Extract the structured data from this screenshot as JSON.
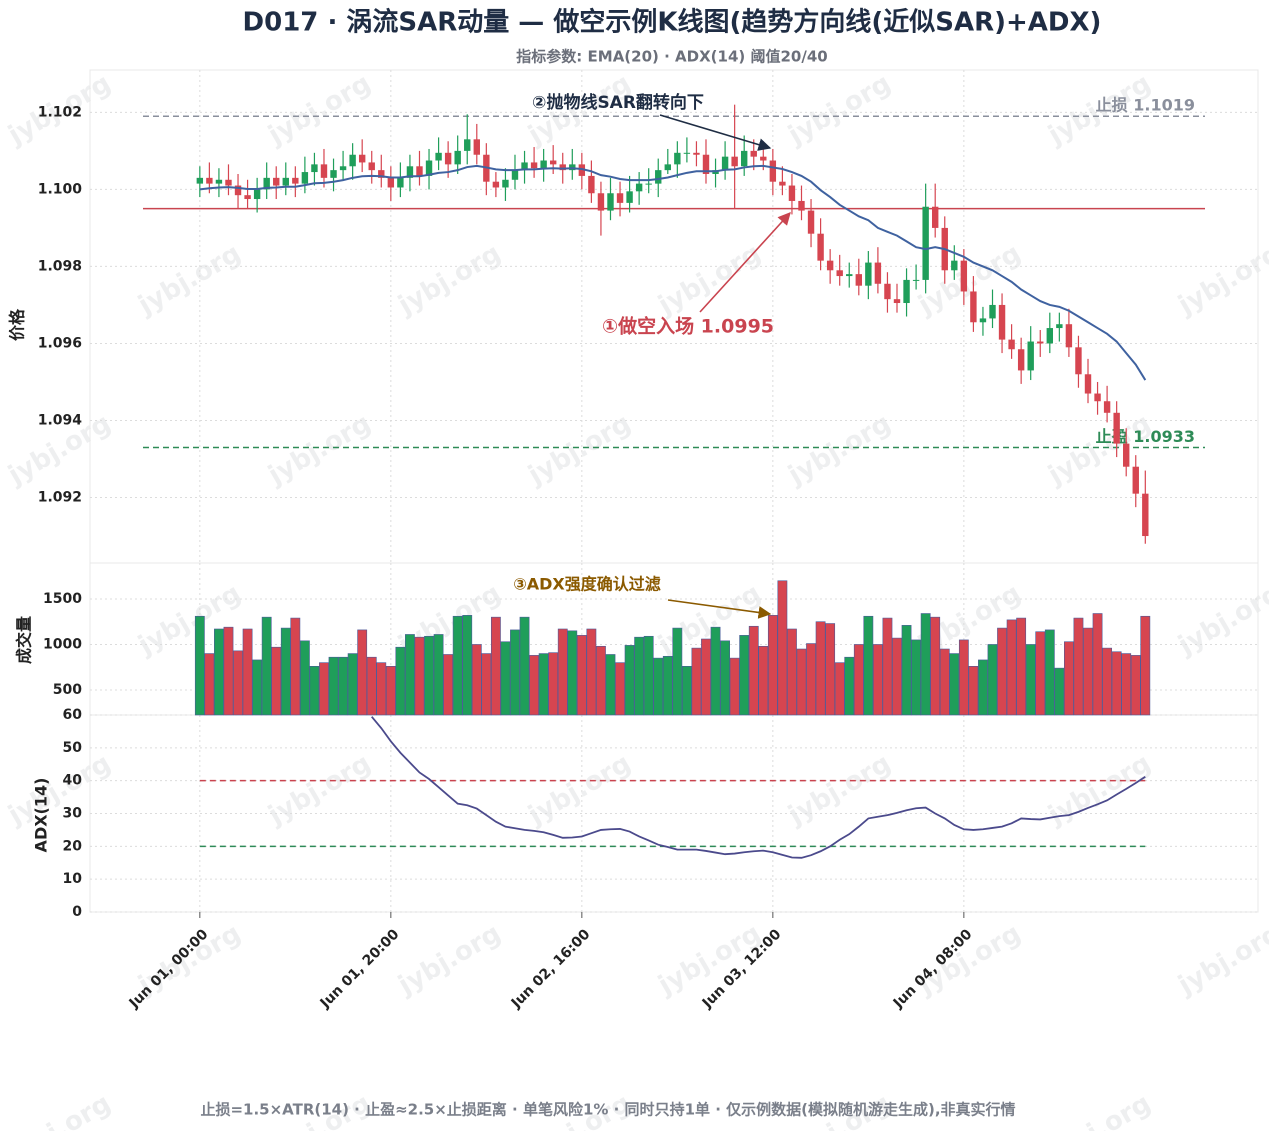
{
  "title": "D017 · 涡流SAR动量 — 做空示例K线图(趋势方向线(近似SAR)+ADX)",
  "subtitle": "指标参数: EMA(20) · ADX(14) 阈值20/40",
  "footer": "止损=1.5×ATR(14) · 止盈≈2.5×止损距离 · 单笔风险1% · 同时只持1单 · 仅示例数据(模拟随机游走生成),非真实行情",
  "watermark": "jybj.org",
  "chart_data": [
    {
      "type": "candlestick",
      "ylabel": "价格",
      "grid": true,
      "up_color": "#1f9e5a",
      "down_color": "#d64550",
      "ylim": [
        1.0903,
        1.1031
      ],
      "yticks": [
        1.092,
        1.094,
        1.096,
        1.098,
        {
          "value": 1.1,
          "label": "1.100"
        },
        1.102
      ],
      "x": [
        0,
        1,
        2,
        3,
        4,
        5,
        6,
        7,
        8,
        9,
        10,
        11,
        12,
        13,
        14,
        15,
        16,
        17,
        18,
        19,
        20,
        21,
        22,
        23,
        24,
        25,
        26,
        27,
        28,
        29,
        30,
        31,
        32,
        33,
        34,
        35,
        36,
        37,
        38,
        39,
        40,
        41,
        42,
        43,
        44,
        45,
        46,
        47,
        48,
        49,
        50,
        51,
        52,
        53,
        54,
        55,
        56,
        57,
        58,
        59,
        60,
        61,
        62,
        63,
        64,
        65,
        66,
        67,
        68,
        69,
        70,
        71,
        72,
        73,
        74,
        75,
        76,
        77,
        78,
        79,
        80,
        81,
        82,
        83,
        84,
        85,
        86,
        87,
        88,
        89,
        90,
        91,
        92,
        93,
        94,
        95,
        96,
        97,
        98,
        99
      ],
      "open": [
        1.10015,
        1.1003,
        1.10015,
        1.10025,
        1.1001,
        1.09985,
        1.09975,
        1.1,
        1.1003,
        1.1001,
        1.1003,
        1.10015,
        1.10045,
        1.10065,
        1.1003,
        1.1005,
        1.1006,
        1.1009,
        1.1007,
        1.1005,
        1.1003,
        1.10005,
        1.1003,
        1.1006,
        1.10035,
        1.10075,
        1.10095,
        1.10065,
        1.101,
        1.1013,
        1.1009,
        1.1002,
        1.10005,
        1.10025,
        1.1005,
        1.1007,
        1.10055,
        1.10075,
        1.10065,
        1.1005,
        1.10065,
        1.10035,
        1.0999,
        1.09945,
        1.0999,
        1.09965,
        1.09995,
        1.10015,
        1.10015,
        1.1005,
        1.10065,
        1.10095,
        1.10095,
        1.1009,
        1.1004,
        1.1005,
        1.10085,
        1.1006,
        1.101,
        1.10085,
        1.10075,
        1.1002,
        1.1001,
        1.0997,
        1.09945,
        1.09885,
        1.09815,
        1.0979,
        1.09775,
        1.0978,
        1.0975,
        1.0981,
        1.09755,
        1.09715,
        1.09705,
        1.09765,
        1.09765,
        1.09955,
        1.099,
        1.0979,
        1.09815,
        1.09735,
        1.09655,
        1.09665,
        1.097,
        1.0961,
        1.09585,
        1.0953,
        1.09605,
        1.096,
        1.0964,
        1.0965,
        1.0959,
        1.0952,
        1.0947,
        1.0945,
        1.0942,
        1.0934,
        1.0928,
        1.0921
      ],
      "high": [
        1.1006,
        1.1007,
        1.10055,
        1.10065,
        1.1004,
        1.10025,
        1.1003,
        1.1007,
        1.1006,
        1.1007,
        1.1006,
        1.10085,
        1.10095,
        1.10105,
        1.1008,
        1.101,
        1.1012,
        1.1013,
        1.101,
        1.1009,
        1.1006,
        1.1007,
        1.1009,
        1.101,
        1.10105,
        1.10135,
        1.10125,
        1.1014,
        1.10195,
        1.1017,
        1.1012,
        1.10045,
        1.10055,
        1.1009,
        1.101,
        1.1011,
        1.10105,
        1.10115,
        1.10095,
        1.10105,
        1.10095,
        1.10075,
        1.1002,
        1.1003,
        1.1002,
        1.10035,
        1.10045,
        1.10055,
        1.1008,
        1.10105,
        1.10125,
        1.10135,
        1.10125,
        1.1013,
        1.1008,
        1.10125,
        1.1022,
        1.1014,
        1.1013,
        1.10125,
        1.10105,
        1.1006,
        1.1004,
        1.1001,
        1.09975,
        1.09925,
        1.09845,
        1.0983,
        1.0981,
        1.0982,
        1.0984,
        1.0985,
        1.09785,
        1.09755,
        1.09795,
        1.09805,
        1.10015,
        1.10015,
        1.0993,
        1.09855,
        1.09845,
        1.09775,
        1.09695,
        1.0974,
        1.0973,
        1.0965,
        1.09615,
        1.09645,
        1.09635,
        1.0968,
        1.0968,
        1.0969,
        1.0962,
        1.0956,
        1.095,
        1.0949,
        1.0945,
        1.0938,
        1.0931,
        1.0927
      ],
      "low": [
        1.0998,
        1.0999,
        1.0998,
        1.09985,
        1.0995,
        1.0995,
        1.0994,
        1.09975,
        1.09975,
        1.09985,
        1.0998,
        1.0999,
        1.1001,
        1.10005,
        1.09995,
        1.10025,
        1.10025,
        1.10045,
        1.10015,
        1.10005,
        1.0997,
        1.0998,
        1.09995,
        1.1001,
        1.1,
        1.1005,
        1.1003,
        1.1004,
        1.10065,
        1.10065,
        1.09985,
        1.0998,
        1.0997,
        1.1,
        1.10015,
        1.1003,
        1.1002,
        1.1004,
        1.10015,
        1.10025,
        1.1,
        1.09965,
        1.0988,
        1.0992,
        1.0993,
        1.0994,
        1.0996,
        1.0999,
        1.0998,
        1.1004,
        1.1003,
        1.1007,
        1.1006,
        1.10015,
        1.10005,
        1.10025,
        1.0995,
        1.10035,
        1.1005,
        1.1005,
        1.09985,
        1.09985,
        1.09935,
        1.0992,
        1.0985,
        1.0979,
        1.09755,
        1.0975,
        1.09745,
        1.09725,
        1.09715,
        1.0973,
        1.0968,
        1.0968,
        1.0967,
        1.0974,
        1.0973,
        1.09875,
        1.09755,
        1.09765,
        1.097,
        1.0963,
        1.0962,
        1.0964,
        1.09575,
        1.0956,
        1.09495,
        1.09505,
        1.09565,
        1.09575,
        1.09605,
        1.09565,
        1.09485,
        1.09445,
        1.09415,
        1.09395,
        1.09305,
        1.09255,
        1.09175,
        1.0908
      ],
      "close": [
        1.1003,
        1.10015,
        1.10025,
        1.1001,
        1.09985,
        1.09975,
        1.1,
        1.1003,
        1.1001,
        1.1003,
        1.10015,
        1.10045,
        1.10065,
        1.1003,
        1.1005,
        1.1006,
        1.1009,
        1.1007,
        1.1005,
        1.1003,
        1.10005,
        1.1003,
        1.1006,
        1.10035,
        1.10075,
        1.10095,
        1.10065,
        1.101,
        1.1013,
        1.1009,
        1.1002,
        1.10005,
        1.10025,
        1.1005,
        1.1007,
        1.10055,
        1.10075,
        1.10065,
        1.1005,
        1.10065,
        1.10035,
        1.0999,
        1.09945,
        1.0999,
        1.09965,
        1.09995,
        1.10015,
        1.10015,
        1.1005,
        1.10065,
        1.10095,
        1.10095,
        1.1009,
        1.1004,
        1.1005,
        1.10085,
        1.1006,
        1.101,
        1.10085,
        1.10075,
        1.1002,
        1.1001,
        1.0997,
        1.09945,
        1.09885,
        1.09815,
        1.0979,
        1.09775,
        1.0978,
        1.0975,
        1.0981,
        1.09755,
        1.09715,
        1.09705,
        1.09765,
        1.09765,
        1.09955,
        1.099,
        1.0979,
        1.09815,
        1.09735,
        1.09655,
        1.09665,
        1.097,
        1.0961,
        1.09585,
        1.0953,
        1.09605,
        1.096,
        1.0964,
        1.0965,
        1.0959,
        1.0952,
        1.0947,
        1.0945,
        1.0942,
        1.0934,
        1.0928,
        1.0921,
        1.091
      ],
      "ema_color": "#3f62a0",
      "ema_values": [
        1.1,
        1.10003,
        1.10005,
        1.10006,
        1.10004,
        1.10001,
        1.10001,
        1.10004,
        1.10005,
        1.10007,
        1.10007,
        1.10011,
        1.10016,
        1.10017,
        1.1002,
        1.10024,
        1.1003,
        1.10034,
        1.10035,
        1.10034,
        1.10031,
        1.10031,
        1.10034,
        1.10034,
        1.10038,
        1.10043,
        1.10045,
        1.1005,
        1.10058,
        1.10061,
        1.10057,
        1.10052,
        1.1005,
        1.1005,
        1.10052,
        1.10052,
        1.10054,
        1.10055,
        1.10054,
        1.10055,
        1.10053,
        1.10047,
        1.10037,
        1.10033,
        1.10027,
        1.10024,
        1.10024,
        1.10024,
        1.10027,
        1.10031,
        1.10037,
        1.10043,
        1.10047,
        1.10047,
        1.10047,
        1.10051,
        1.10052,
        1.10057,
        1.1006,
        1.10061,
        1.10057,
        1.10053,
        1.10045,
        1.10035,
        1.1002,
        1.09998,
        1.0998,
        1.0996,
        1.09945,
        1.0993,
        1.0992,
        1.099,
        1.0989,
        1.0988,
        1.09865,
        1.0985,
        1.09845,
        1.0985,
        1.09845,
        1.09835,
        1.09825,
        1.0981,
        1.098,
        1.0979,
        1.09775,
        1.0976,
        1.0974,
        1.09725,
        1.0971,
        1.097,
        1.09695,
        1.09685,
        1.0967,
        1.09655,
        1.0964,
        1.09625,
        1.09605,
        1.09575,
        1.09545,
        1.09505
      ],
      "levels": [
        {
          "value": 1.1019,
          "label": "止损 1.1019",
          "color": "#8a8f9c",
          "style": "dashed"
        },
        {
          "value": 1.0933,
          "label": "止盈 1.0933",
          "color": "#2e8b57",
          "style": "dashed"
        },
        {
          "value": 1.0995,
          "label": "①做空入场 1.0995",
          "color": "#c9444f",
          "style": "solid"
        }
      ],
      "annotations": [
        "②抛物线SAR翻转向下"
      ]
    },
    {
      "type": "bar",
      "ylabel": "成交量",
      "grid": true,
      "ylim": [
        225,
        1895
      ],
      "yticks": [
        500,
        1000,
        1500
      ],
      "up_color": "#1f9e5a",
      "down_color": "#d64550",
      "values": [
        1310,
        900,
        1170,
        1190,
        930,
        1170,
        830,
        1300,
        970,
        1180,
        1290,
        1040,
        760,
        800,
        860,
        860,
        900,
        1160,
        860,
        800,
        760,
        970,
        1110,
        1080,
        1090,
        1110,
        890,
        1310,
        1320,
        1000,
        900,
        1300,
        1030,
        1160,
        1300,
        880,
        900,
        910,
        1170,
        1150,
        1100,
        1170,
        980,
        890,
        800,
        990,
        1080,
        1090,
        850,
        870,
        1180,
        760,
        960,
        1060,
        1190,
        1040,
        850,
        1100,
        1200,
        980,
        1320,
        1700,
        1170,
        950,
        1010,
        1250,
        1230,
        800,
        860,
        1000,
        1310,
        1000,
        1290,
        1070,
        1210,
        1050,
        1340,
        1300,
        950,
        900,
        1050,
        760,
        830,
        1000,
        1180,
        1270,
        1290,
        1000,
        1140,
        1160,
        740,
        1030,
        1290,
        1180,
        1340,
        960,
        920,
        900,
        880,
        1310
      ],
      "annotations": [
        "③ADX强度确认过滤"
      ]
    },
    {
      "type": "line",
      "ylabel": "ADX(14)",
      "grid": true,
      "color": "#4b4a8c",
      "ylim": [
        0,
        60
      ],
      "yticks": [
        0,
        10,
        20,
        30,
        40,
        50,
        60
      ],
      "xlim": [
        -11.5,
        110.8
      ],
      "xticks": [
        {
          "value": 0,
          "label": "Jun 01, 00:00"
        },
        {
          "value": 20,
          "label": "Jun 01, 20:00"
        },
        {
          "value": 40,
          "label": "Jun 02, 16:00"
        },
        {
          "value": 60,
          "label": "Jun 03, 12:00"
        },
        {
          "value": 80,
          "label": "Jun 04, 08:00"
        }
      ],
      "values": [
        null,
        null,
        null,
        null,
        null,
        null,
        null,
        null,
        null,
        null,
        null,
        null,
        null,
        null,
        null,
        null,
        null,
        null,
        59.5,
        56,
        52,
        48.5,
        45.5,
        42.5,
        40.5,
        38,
        35.5,
        33,
        32.5,
        31.5,
        29.5,
        27.5,
        26,
        25.5,
        25,
        24.7,
        24.3,
        23.5,
        22.6,
        22.7,
        23,
        24,
        25,
        25.2,
        25.3,
        24.5,
        23,
        21.8,
        20.5,
        19.8,
        19,
        19,
        19,
        18.6,
        18.1,
        17.6,
        17.8,
        18.2,
        18.5,
        18.7,
        18.2,
        17.4,
        16.6,
        16.5,
        17.3,
        18.5,
        20,
        22,
        23.7,
        26,
        28.5,
        29,
        29.5,
        30.2,
        31,
        31.6,
        31.8,
        30,
        28.5,
        26.5,
        25.2,
        25,
        25.2,
        25.6,
        26,
        27,
        28.5,
        28.3,
        28.2,
        28.7,
        29.2,
        29.5,
        30.5,
        31.7,
        32.8,
        34,
        35.8,
        37.5,
        39.3,
        41.2
      ],
      "levels": [
        {
          "value": 40,
          "color": "#c9444f",
          "style": "dashed"
        },
        {
          "value": 20,
          "color": "#2e8b57",
          "style": "dashed"
        }
      ]
    }
  ]
}
